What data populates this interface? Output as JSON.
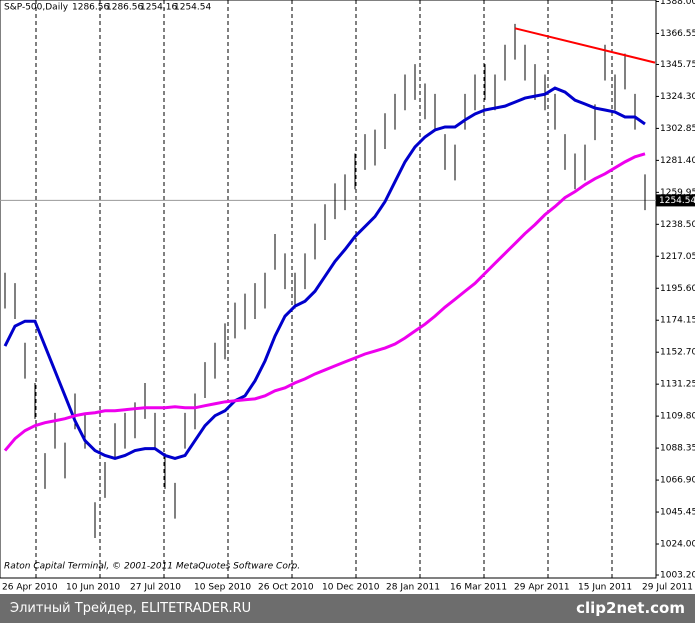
{
  "chart_data": {
    "type": "ohlc",
    "title": "S&P-500,Daily",
    "ohlc_last": [
      1286.56,
      1286.56,
      1254.16,
      1254.54
    ],
    "copyright": "Raton Capital Terminal, © 2001-2011 MetaQuotes Software Corp.",
    "bar_color": "#000000",
    "high": [
      1206,
      1199,
      1159,
      1132,
      1085,
      1112,
      1092,
      1125,
      1112,
      1052,
      1079,
      1105,
      1112,
      1119,
      1132,
      1112,
      1085,
      1065,
      1112,
      1125,
      1146,
      1159,
      1172,
      1186,
      1192,
      1199,
      1206,
      1232,
      1219,
      1206,
      1219,
      1239,
      1252,
      1266,
      1272,
      1286,
      1299,
      1302,
      1313,
      1326,
      1339,
      1346,
      1333,
      1326,
      1299,
      1292,
      1326,
      1339,
      1346,
      1339,
      1359,
      1373,
      1359,
      1346,
      1339,
      1326,
      1299,
      1286,
      1292,
      1319,
      1359,
      1339,
      1353,
      1326,
      1272
    ],
    "low": [
      1182,
      1175,
      1135,
      1108,
      1061,
      1088,
      1068,
      1101,
      1088,
      1028,
      1055,
      1081,
      1088,
      1095,
      1108,
      1088,
      1061,
      1041,
      1088,
      1101,
      1122,
      1135,
      1148,
      1162,
      1168,
      1175,
      1182,
      1208,
      1195,
      1182,
      1195,
      1215,
      1228,
      1242,
      1248,
      1262,
      1275,
      1278,
      1289,
      1302,
      1315,
      1322,
      1309,
      1302,
      1275,
      1268,
      1302,
      1315,
      1322,
      1315,
      1335,
      1349,
      1335,
      1322,
      1315,
      1302,
      1275,
      1262,
      1268,
      1295,
      1335,
      1315,
      1329,
      1302,
      1248
    ],
    "series": [
      {
        "color": "#0000cc",
        "values": [
          1156.8,
          1170.2,
          1173.5,
          1173.5,
          1156.8,
          1140.1,
          1123.4,
          1106.7,
          1093.4,
          1086.7,
          1083.4,
          1081.4,
          1083.4,
          1086.7,
          1088.0,
          1088.0,
          1083.4,
          1081.4,
          1083.4,
          1093.4,
          1103.4,
          1110.1,
          1113.4,
          1120.1,
          1123.4,
          1133.5,
          1146.8,
          1163.5,
          1176.9,
          1183.6,
          1186.9,
          1193.6,
          1203.6,
          1213.6,
          1221.6,
          1230.3,
          1237.0,
          1243.7,
          1253.7,
          1267.1,
          1280.4,
          1290.4,
          1297.1,
          1301.8,
          1303.8,
          1303.8,
          1308.5,
          1312.5,
          1315.2,
          1316.5,
          1317.8,
          1320.5,
          1323.2,
          1324.5,
          1325.8,
          1329.9,
          1327.2,
          1321.8,
          1319.2,
          1316.5,
          1315.2,
          1313.8,
          1310.5,
          1310.5,
          1305.8
        ]
      },
      {
        "color": "#ee00ee",
        "values": [
          1086.7,
          1094.7,
          1100.1,
          1103.4,
          1105.4,
          1106.7,
          1108.1,
          1110.1,
          1111.4,
          1112.1,
          1113.4,
          1113.4,
          1114.1,
          1114.8,
          1115.4,
          1115.4,
          1115.4,
          1116.1,
          1115.4,
          1115.4,
          1116.8,
          1118.1,
          1119.4,
          1120.1,
          1120.8,
          1121.4,
          1123.4,
          1126.8,
          1128.8,
          1132.1,
          1134.8,
          1138.1,
          1140.8,
          1143.5,
          1146.2,
          1148.8,
          1151.5,
          1153.5,
          1155.5,
          1158.2,
          1162.2,
          1166.9,
          1171.5,
          1176.9,
          1182.9,
          1188.2,
          1193.6,
          1198.9,
          1205.6,
          1212.3,
          1219.0,
          1225.6,
          1232.3,
          1238.3,
          1245.0,
          1250.4,
          1256.4,
          1260.4,
          1265.1,
          1269.1,
          1272.4,
          1276.4,
          1280.4,
          1283.8,
          1285.8
        ]
      }
    ],
    "trendline": {
      "color": "#ff0000",
      "x": [
        51,
        65
      ],
      "values": [
        1370,
        1347
      ]
    },
    "last_price": 1254.54,
    "ylim": [
      1001.2,
      1389
    ],
    "yticks": [
      {
        "value": 1003.2,
        "label": "1003.20"
      },
      {
        "value": 1024,
        "label": "1024.00"
      },
      {
        "value": 1045.45,
        "label": "1045.45"
      },
      {
        "value": 1066.9,
        "label": "1066.90"
      },
      {
        "value": 1088.35,
        "label": "1088.35"
      },
      {
        "value": 1109.8,
        "label": "1109.80"
      },
      {
        "value": 1131.25,
        "label": "1131.25"
      },
      {
        "value": 1152.7,
        "label": "1152.70"
      },
      {
        "value": 1174.15,
        "label": "1174.15"
      },
      {
        "value": 1195.6,
        "label": "1195.60"
      },
      {
        "value": 1217.05,
        "label": "1217.05"
      },
      {
        "value": 1238.5,
        "label": "1238.50"
      },
      {
        "value": 1259.95,
        "label": "1259.95"
      },
      {
        "value": 1281.4,
        "label": "1281.40"
      },
      {
        "value": 1302.85,
        "label": "1302.85"
      },
      {
        "value": 1324.3,
        "label": "1324.30"
      },
      {
        "value": 1345.75,
        "label": "1345.75"
      },
      {
        "value": 1366.55,
        "label": "1366.55"
      },
      {
        "value": 1388,
        "label": "1388.00"
      }
    ],
    "xaxis_labels": [
      "26 Apr 2010",
      "10 Jun 2010",
      "27 Jul 2010",
      "10 Sep 2010",
      "26 Oct 2010",
      "10 Dec 2010",
      "28 Jan 2011",
      "16 Mar 2011",
      "29 Apr 2011",
      "15 Jun 2011",
      "29 Jul 2011"
    ]
  },
  "footer": {
    "site": "Элитный Трейдер, ELITETRADER.RU",
    "logo": "clip2net.com"
  }
}
